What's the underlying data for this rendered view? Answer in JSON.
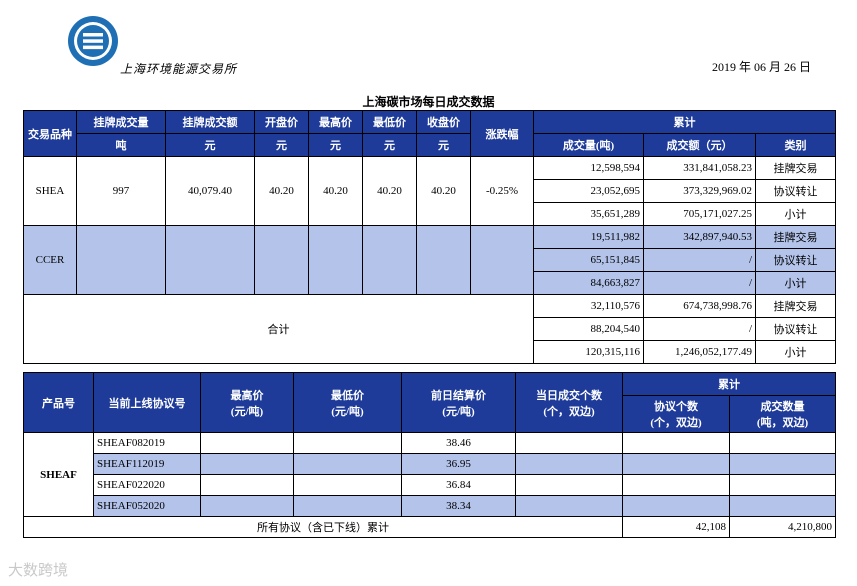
{
  "header": {
    "logo_text": "上海环境能源交易所",
    "date": "2019 年 06 月 26 日",
    "title": "上海碳市场每日成交数据"
  },
  "table1": {
    "headers": {
      "product": "交易品种",
      "listed_volume": "挂牌成交量",
      "listed_volume_unit": "吨",
      "listed_amount": "挂牌成交额",
      "listed_amount_unit": "元",
      "open": "开盘价",
      "high": "最高价",
      "low": "最低价",
      "close": "收盘价",
      "unit_yuan": "元",
      "change": "涨跌幅",
      "cumulative": "累计",
      "cum_volume": "成交量(吨)",
      "cum_amount": "成交额（元）",
      "category": "类别"
    },
    "shea": {
      "name": "SHEA",
      "listed_volume": "997",
      "listed_amount": "40,079.40",
      "open": "40.20",
      "high": "40.20",
      "low": "40.20",
      "close": "40.20",
      "change": "-0.25%",
      "rows": [
        {
          "volume": "12,598,594",
          "amount": "331,841,058.23",
          "category": "挂牌交易"
        },
        {
          "volume": "23,052,695",
          "amount": "373,329,969.02",
          "category": "协议转让"
        },
        {
          "volume": "35,651,289",
          "amount": "705,171,027.25",
          "category": "小计"
        }
      ]
    },
    "ccer": {
      "name": "CCER",
      "rows": [
        {
          "volume": "19,511,982",
          "amount": "342,897,940.53",
          "category": "挂牌交易"
        },
        {
          "volume": "65,151,845",
          "amount": "/",
          "category": "协议转让"
        },
        {
          "volume": "84,663,827",
          "amount": "/",
          "category": "小计"
        }
      ]
    },
    "total": {
      "label": "合计",
      "rows": [
        {
          "volume": "32,110,576",
          "amount": "674,738,998.76",
          "category": "挂牌交易"
        },
        {
          "volume": "88,204,540",
          "amount": "/",
          "category": "协议转让"
        },
        {
          "volume": "120,315,116",
          "amount": "1,246,052,177.49",
          "category": "小计"
        }
      ]
    }
  },
  "table2": {
    "headers": {
      "product": "产品号",
      "agreement": "当前上线协议号",
      "high": "最高价",
      "high_unit": "(元/吨)",
      "low": "最低价",
      "low_unit": "(元/吨)",
      "settle": "前日结算价",
      "settle_unit": "(元/吨)",
      "today_count": "当日成交个数",
      "today_count_unit": "(个，双边)",
      "cumulative": "累计",
      "cum_count": "协议个数",
      "cum_count_unit": "(个，双边)",
      "cum_qty": "成交数量",
      "cum_qty_unit": "(吨，双边)"
    },
    "product": "SHEAF",
    "rows": [
      {
        "agreement": "SHEAF082019",
        "settle": "38.46"
      },
      {
        "agreement": "SHEAF112019",
        "settle": "36.95"
      },
      {
        "agreement": "SHEAF022020",
        "settle": "36.84"
      },
      {
        "agreement": "SHEAF052020",
        "settle": "38.34"
      }
    ],
    "total_label": "所有协议（含已下线）累计",
    "total_count": "42,108",
    "total_qty": "4,210,800"
  },
  "watermark": "大数跨境",
  "colors": {
    "header_bg": "#1f3b99",
    "highlight": "#b3c3ea",
    "logo_blue": "#1f6fb5"
  }
}
